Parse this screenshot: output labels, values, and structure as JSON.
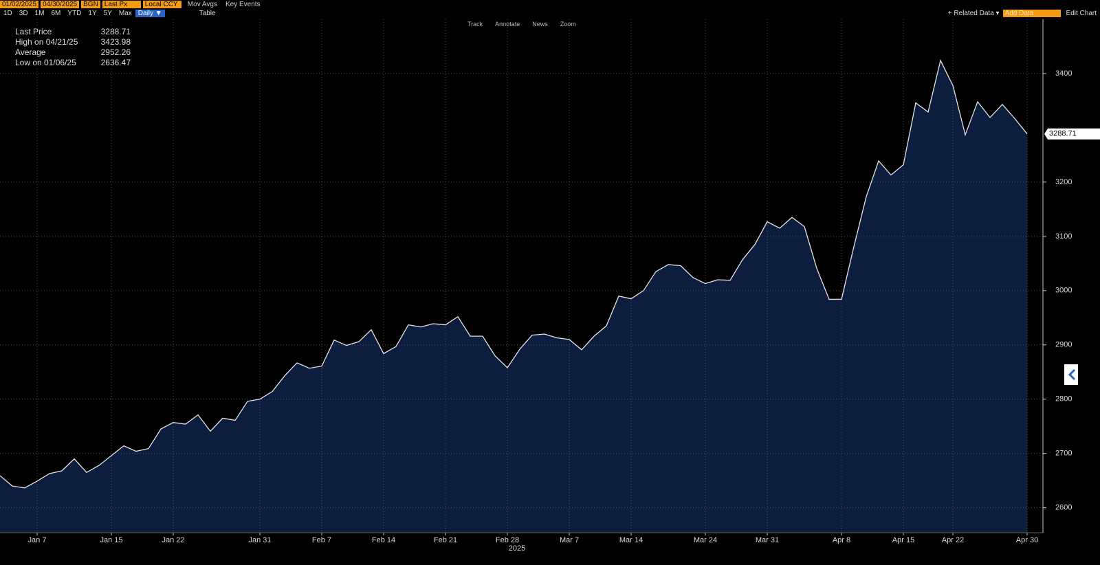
{
  "toolbar": {
    "start_date": "01/02/2025",
    "end_date": "04/30/2025",
    "source": "BGN",
    "field": "Last Px",
    "currency": "Local CCY",
    "mov_avgs": "Mov Avgs",
    "key_events": "Key Events",
    "ranges": [
      "1D",
      "3D",
      "1M",
      "6M",
      "YTD",
      "1Y",
      "5Y",
      "Max"
    ],
    "period": "Daily ▼",
    "table": "Table",
    "related_data": "+ Related Data ▾",
    "add_data": "Add Data",
    "edit_chart": "Edit Chart",
    "tools": [
      "Track",
      "Annotate",
      "News",
      "Zoom"
    ]
  },
  "chart_data": {
    "type": "area",
    "color": "#e6e6e6",
    "fill": "#0c1d3d",
    "x_label": "2025",
    "categories": [
      null,
      null,
      null,
      "Jan 7",
      null,
      null,
      null,
      null,
      null,
      "Jan 15",
      null,
      null,
      null,
      null,
      "Jan 22",
      null,
      null,
      null,
      null,
      null,
      null,
      "Jan 31",
      null,
      null,
      null,
      null,
      "Feb 7",
      null,
      null,
      null,
      null,
      "Feb 14",
      null,
      null,
      null,
      null,
      "Feb 21",
      null,
      null,
      null,
      null,
      "Feb 28",
      null,
      null,
      null,
      null,
      "Mar 7",
      null,
      null,
      null,
      null,
      "Mar 14",
      null,
      null,
      null,
      null,
      null,
      "Mar 24",
      null,
      null,
      null,
      null,
      "Mar 31",
      null,
      null,
      null,
      null,
      null,
      "Apr 8",
      null,
      null,
      null,
      null,
      "Apr 15",
      null,
      null,
      null,
      "Apr 22",
      null,
      null,
      null,
      null,
      null,
      "Apr 30"
    ],
    "values": [
      2659,
      2640,
      2636.47,
      2649,
      2663,
      2668,
      2690,
      2665,
      2678,
      2696,
      2714,
      2704,
      2709,
      2745,
      2757,
      2754,
      2771,
      2741,
      2765,
      2761,
      2796,
      2800,
      2814,
      2843,
      2867,
      2857,
      2861,
      2909,
      2899,
      2906,
      2928,
      2884,
      2897,
      2937,
      2933,
      2939,
      2937,
      2952,
      2916,
      2916,
      2880,
      2858,
      2892,
      2918,
      2920,
      2913,
      2910,
      2891,
      2916,
      2935,
      2990,
      2985,
      3000,
      3035,
      3048,
      3046,
      3024,
      3013,
      3020,
      3019,
      3057,
      3085,
      3127,
      3115,
      3135,
      3118,
      3041,
      2984,
      2984,
      3081,
      3173,
      3239,
      3213,
      3232,
      3346,
      3329,
      3423.98,
      3378,
      3287,
      3348,
      3319,
      3343,
      3317,
      3288.71
    ],
    "ylim": [
      2554,
      3500
    ],
    "yticks": [
      2600,
      2700,
      2800,
      2900,
      3000,
      3100,
      3200,
      3400
    ],
    "grid": true,
    "stats": [
      {
        "label": "Last Price",
        "value": 3288.71
      },
      {
        "label": "High on 04/21/25",
        "value": 3423.98
      },
      {
        "label": "Average",
        "value": 2952.26
      },
      {
        "label": "Low on 01/06/25",
        "value": 2636.47
      }
    ]
  }
}
